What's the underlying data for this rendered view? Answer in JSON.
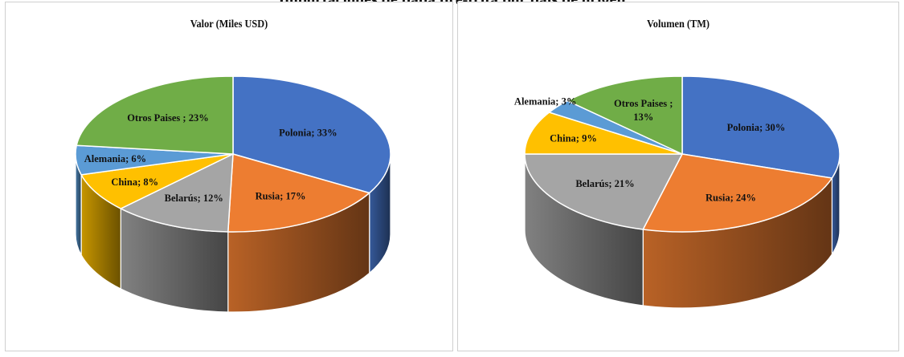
{
  "header": {
    "partial_title": "Importaciones de papa pre-frita por país de origen"
  },
  "colors": {
    "Polonia": "#4472c4",
    "Rusia": "#ed7d31",
    "Belarús": "#a5a5a5",
    "China": "#ffc000",
    "Alemania": "#5b9bd5",
    "Otros Paises": "#70ad47"
  },
  "chart_data": [
    {
      "type": "pie",
      "variant": "3d",
      "title": "Valor (Miles USD)",
      "slices": [
        {
          "name": "Polonia",
          "value": 33,
          "label": "Polonia; 33%"
        },
        {
          "name": "Rusia",
          "value": 17,
          "label": "Rusia; 17%"
        },
        {
          "name": "Belarús",
          "value": 12,
          "label": "Belarús; 12%"
        },
        {
          "name": "China",
          "value": 8,
          "label": "China; 8%"
        },
        {
          "name": "Alemania",
          "value": 6,
          "label": "Alemania; 6%"
        },
        {
          "name": "Otros Paises",
          "value": 23,
          "label": "Otros Paises ; 23%"
        }
      ]
    },
    {
      "type": "pie",
      "variant": "3d",
      "title": "Volumen  (TM)",
      "slices": [
        {
          "name": "Polonia",
          "value": 30,
          "label": "Polonia; 30%"
        },
        {
          "name": "Rusia",
          "value": 24,
          "label": "Rusia; 24%"
        },
        {
          "name": "Belarús",
          "value": 21,
          "label": "Belarús; 21%"
        },
        {
          "name": "China",
          "value": 9,
          "label": "China; 9%"
        },
        {
          "name": "Alemania",
          "value": 3,
          "label": "Alemania; 3%"
        },
        {
          "name": "Otros Paises",
          "value": 13,
          "label": "Otros Paises ;\n13%"
        }
      ]
    }
  ]
}
